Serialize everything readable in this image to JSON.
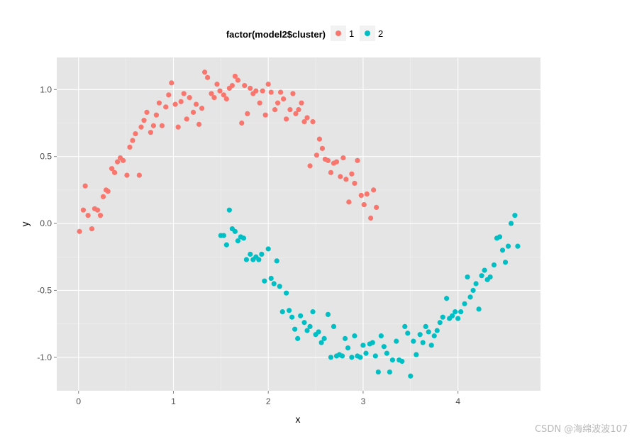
{
  "chart_data": {
    "type": "scatter",
    "xlabel": "x",
    "ylabel": "y",
    "xlim": [
      -0.23,
      4.87
    ],
    "ylim": [
      -1.25,
      1.24
    ],
    "x_ticks": [
      0,
      1,
      2,
      3,
      4
    ],
    "x_tick_labels": [
      "0",
      "1",
      "2",
      "3",
      "4"
    ],
    "y_ticks": [
      -1.0,
      -0.5,
      0.0,
      0.5,
      1.0
    ],
    "y_tick_labels": [
      "-1.0",
      "-0.5",
      "0.0",
      "0.5",
      "1.0"
    ],
    "grid": true,
    "legend": {
      "title": "factor(model2$cluster)",
      "position": "top"
    },
    "series": [
      {
        "name": "1",
        "color": "#F8766D",
        "points": [
          [
            0.01,
            -0.06
          ],
          [
            0.05,
            0.1
          ],
          [
            0.07,
            0.28
          ],
          [
            0.1,
            0.06
          ],
          [
            0.14,
            -0.04
          ],
          [
            0.17,
            0.11
          ],
          [
            0.2,
            0.1
          ],
          [
            0.23,
            0.06
          ],
          [
            0.26,
            0.2
          ],
          [
            0.29,
            0.25
          ],
          [
            0.31,
            0.24
          ],
          [
            0.35,
            0.41
          ],
          [
            0.38,
            0.38
          ],
          [
            0.41,
            0.46
          ],
          [
            0.44,
            0.49
          ],
          [
            0.47,
            0.47
          ],
          [
            0.51,
            0.36
          ],
          [
            0.54,
            0.57
          ],
          [
            0.57,
            0.62
          ],
          [
            0.6,
            0.67
          ],
          [
            0.64,
            0.36
          ],
          [
            0.66,
            0.72
          ],
          [
            0.69,
            0.77
          ],
          [
            0.72,
            0.83
          ],
          [
            0.76,
            0.68
          ],
          [
            0.79,
            0.73
          ],
          [
            0.82,
            0.81
          ],
          [
            0.85,
            0.9
          ],
          [
            0.88,
            0.73
          ],
          [
            0.92,
            0.87
          ],
          [
            0.95,
            0.96
          ],
          [
            0.98,
            1.05
          ],
          [
            1.02,
            0.89
          ],
          [
            1.05,
            0.72
          ],
          [
            1.08,
            0.91
          ],
          [
            1.11,
            0.97
          ],
          [
            1.14,
            0.78
          ],
          [
            1.17,
            0.94
          ],
          [
            1.21,
            0.83
          ],
          [
            1.24,
            0.89
          ],
          [
            1.27,
            0.74
          ],
          [
            1.3,
            0.86
          ],
          [
            1.33,
            1.13
          ],
          [
            1.36,
            1.09
          ],
          [
            1.4,
            0.97
          ],
          [
            1.43,
            0.94
          ],
          [
            1.46,
            1.04
          ],
          [
            1.49,
            0.99
          ],
          [
            1.53,
            0.96
          ],
          [
            1.56,
            0.93
          ],
          [
            1.59,
            1.01
          ],
          [
            1.62,
            1.03
          ],
          [
            1.65,
            1.1
          ],
          [
            1.68,
            1.07
          ],
          [
            1.72,
            0.75
          ],
          [
            1.75,
            1.03
          ],
          [
            1.78,
            0.82
          ],
          [
            1.81,
            1.01
          ],
          [
            1.84,
            0.97
          ],
          [
            1.87,
            0.99
          ],
          [
            1.91,
            0.9
          ],
          [
            1.94,
            0.99
          ],
          [
            1.97,
            0.81
          ],
          [
            2.0,
            1.04
          ],
          [
            2.03,
            0.98
          ],
          [
            2.07,
            0.85
          ],
          [
            2.1,
            0.9
          ],
          [
            2.13,
            0.98
          ],
          [
            2.16,
            0.93
          ],
          [
            2.19,
            0.78
          ],
          [
            2.23,
            0.85
          ],
          [
            2.26,
            0.97
          ],
          [
            2.29,
            0.82
          ],
          [
            2.32,
            0.85
          ],
          [
            2.35,
            0.9
          ],
          [
            2.38,
            0.76
          ],
          [
            2.41,
            0.79
          ],
          [
            2.44,
            0.43
          ],
          [
            2.47,
            0.76
          ],
          [
            2.51,
            0.51
          ],
          [
            2.54,
            0.63
          ],
          [
            2.57,
            0.56
          ],
          [
            2.6,
            0.48
          ],
          [
            2.63,
            0.47
          ],
          [
            2.66,
            0.38
          ],
          [
            2.69,
            0.45
          ],
          [
            2.72,
            0.46
          ],
          [
            2.76,
            0.35
          ],
          [
            2.79,
            0.49
          ],
          [
            2.82,
            0.33
          ],
          [
            2.85,
            0.16
          ],
          [
            2.88,
            0.37
          ],
          [
            2.91,
            0.3
          ],
          [
            2.94,
            0.47
          ],
          [
            2.98,
            0.21
          ],
          [
            3.01,
            0.14
          ],
          [
            3.04,
            0.22
          ],
          [
            3.08,
            0.04
          ],
          [
            3.11,
            0.25
          ],
          [
            3.14,
            0.12
          ]
        ]
      },
      {
        "name": "2",
        "color": "#00BFC4",
        "points": [
          [
            1.5,
            -0.09
          ],
          [
            1.53,
            -0.09
          ],
          [
            1.56,
            -0.16
          ],
          [
            1.59,
            0.1
          ],
          [
            1.62,
            -0.04
          ],
          [
            1.65,
            -0.06
          ],
          [
            1.68,
            -0.13
          ],
          [
            1.71,
            -0.1
          ],
          [
            1.74,
            -0.11
          ],
          [
            1.77,
            -0.27
          ],
          [
            1.81,
            -0.23
          ],
          [
            1.84,
            -0.27
          ],
          [
            1.87,
            -0.25
          ],
          [
            1.9,
            -0.27
          ],
          [
            1.93,
            -0.23
          ],
          [
            1.96,
            -0.43
          ],
          [
            2.0,
            -0.19
          ],
          [
            2.03,
            -0.41
          ],
          [
            2.06,
            -0.45
          ],
          [
            2.09,
            -0.28
          ],
          [
            2.12,
            -0.47
          ],
          [
            2.15,
            -0.66
          ],
          [
            2.19,
            -0.52
          ],
          [
            2.22,
            -0.65
          ],
          [
            2.25,
            -0.7
          ],
          [
            2.28,
            -0.79
          ],
          [
            2.31,
            -0.86
          ],
          [
            2.34,
            -0.69
          ],
          [
            2.38,
            -0.74
          ],
          [
            2.41,
            -0.8
          ],
          [
            2.44,
            -0.77
          ],
          [
            2.47,
            -0.66
          ],
          [
            2.5,
            -0.83
          ],
          [
            2.53,
            -0.81
          ],
          [
            2.56,
            -0.89
          ],
          [
            2.59,
            -0.86
          ],
          [
            2.63,
            -0.68
          ],
          [
            2.66,
            -1.0
          ],
          [
            2.69,
            -0.77
          ],
          [
            2.72,
            -0.99
          ],
          [
            2.75,
            -0.98
          ],
          [
            2.78,
            -0.99
          ],
          [
            2.81,
            -0.86
          ],
          [
            2.84,
            -0.93
          ],
          [
            2.88,
            -1.0
          ],
          [
            2.91,
            -0.84
          ],
          [
            2.94,
            -0.99
          ],
          [
            2.97,
            -1.0
          ],
          [
            3.0,
            -0.91
          ],
          [
            3.03,
            -0.97
          ],
          [
            3.07,
            -0.9
          ],
          [
            3.1,
            -0.89
          ],
          [
            3.13,
            -0.99
          ],
          [
            3.16,
            -1.11
          ],
          [
            3.19,
            -0.84
          ],
          [
            3.22,
            -0.92
          ],
          [
            3.25,
            -0.97
          ],
          [
            3.28,
            -1.11
          ],
          [
            3.31,
            -1.02
          ],
          [
            3.35,
            -0.88
          ],
          [
            3.38,
            -1.02
          ],
          [
            3.41,
            -1.03
          ],
          [
            3.44,
            -0.77
          ],
          [
            3.47,
            -0.82
          ],
          [
            3.5,
            -1.14
          ],
          [
            3.53,
            -0.88
          ],
          [
            3.56,
            -0.98
          ],
          [
            3.6,
            -0.83
          ],
          [
            3.63,
            -0.89
          ],
          [
            3.66,
            -0.77
          ],
          [
            3.69,
            -0.81
          ],
          [
            3.72,
            -0.91
          ],
          [
            3.75,
            -0.84
          ],
          [
            3.78,
            -0.8
          ],
          [
            3.81,
            -0.74
          ],
          [
            3.84,
            -0.7
          ],
          [
            3.88,
            -0.56
          ],
          [
            3.91,
            -0.71
          ],
          [
            3.94,
            -0.69
          ],
          [
            3.97,
            -0.66
          ],
          [
            4.0,
            -0.71
          ],
          [
            4.03,
            -0.66
          ],
          [
            4.07,
            -0.6
          ],
          [
            4.1,
            -0.4
          ],
          [
            4.13,
            -0.55
          ],
          [
            4.16,
            -0.5
          ],
          [
            4.19,
            -0.45
          ],
          [
            4.22,
            -0.64
          ],
          [
            4.25,
            -0.39
          ],
          [
            4.28,
            -0.35
          ],
          [
            4.31,
            -0.42
          ],
          [
            4.34,
            -0.4
          ],
          [
            4.38,
            -0.31
          ],
          [
            4.41,
            -0.11
          ],
          [
            4.44,
            -0.1
          ],
          [
            4.47,
            -0.2
          ],
          [
            4.5,
            -0.29
          ],
          [
            4.53,
            -0.17
          ],
          [
            4.56,
            0.0
          ],
          [
            4.6,
            0.06
          ],
          [
            4.63,
            -0.17
          ]
        ]
      }
    ]
  },
  "watermark": "CSDN @海绵波波107"
}
